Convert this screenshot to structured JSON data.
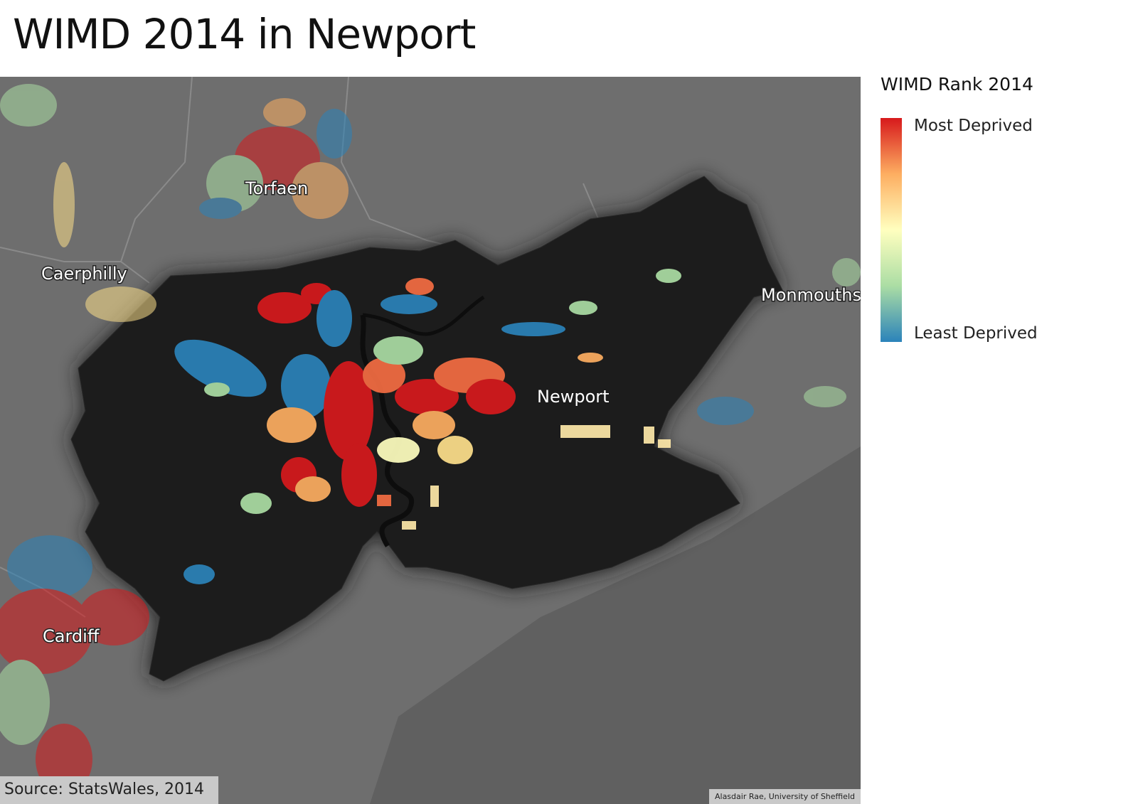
{
  "title": "WIMD 2014 in Newport",
  "legend": {
    "title": "WIMD Rank 2014",
    "top_label": "Most Deprived",
    "bottom_label": "Least Deprived",
    "colors": [
      "#d7191c",
      "#fdae61",
      "#ffffbf",
      "#abdda4",
      "#2b83ba"
    ]
  },
  "map": {
    "background_color": "#6e6e6e",
    "focus_area_color": "#1f1f1f",
    "places": [
      {
        "name": "Torfaen"
      },
      {
        "name": "Caerphilly"
      },
      {
        "name": "Monmouthsh"
      },
      {
        "name": "Newport"
      },
      {
        "name": "Cardiff"
      }
    ]
  },
  "source": "Source: StatsWales, 2014",
  "credit": "Alasdair Rae, University of Sheffield"
}
